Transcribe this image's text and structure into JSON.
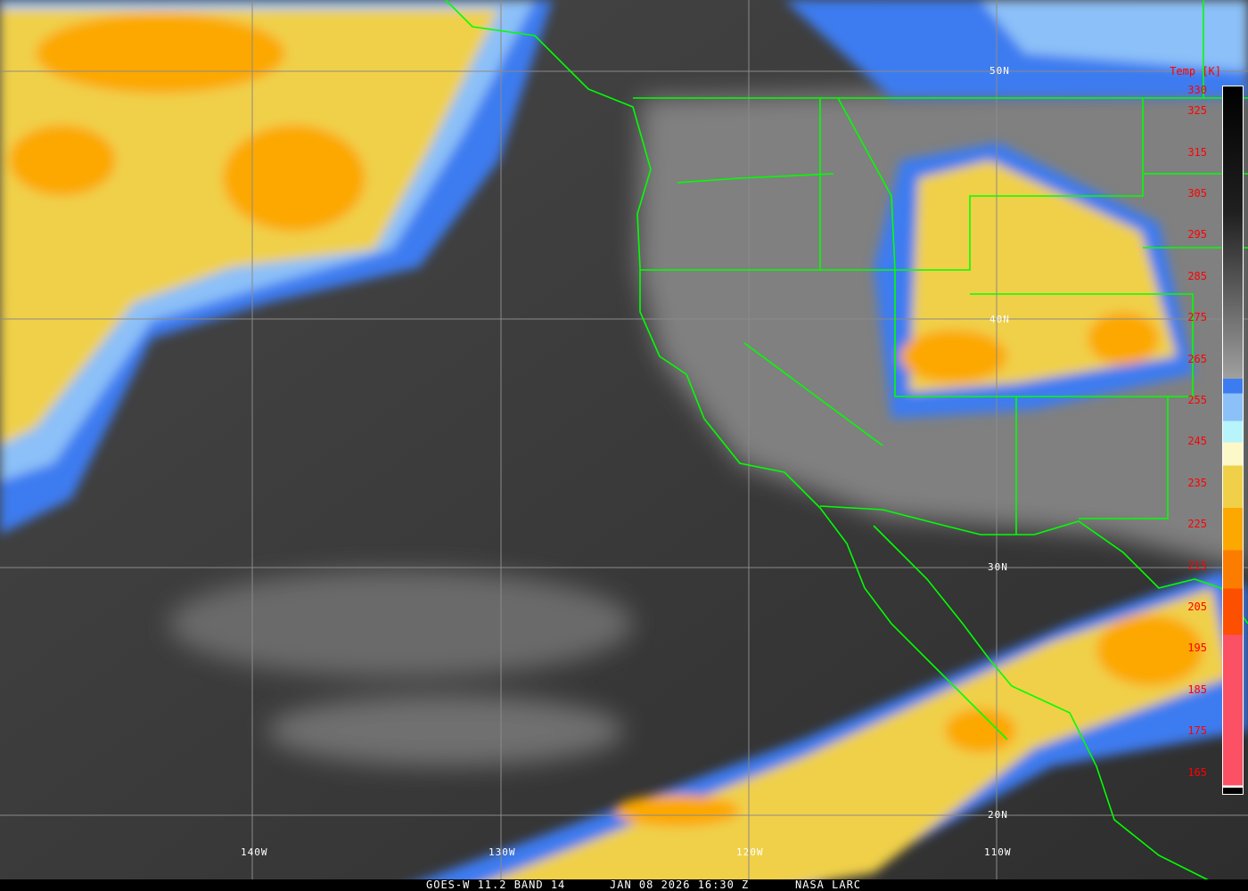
{
  "title": "GOES-W 11.2 BAND 14",
  "datetime": "JAN 08 2026 16:30 Z",
  "credit": "NASA LARC",
  "colorbar": {
    "title": "Temp [K]",
    "ticks": [
      "330",
      "325",
      "315",
      "305",
      "295",
      "285",
      "275",
      "265",
      "255",
      "245",
      "235",
      "225",
      "215",
      "205",
      "195",
      "185",
      "175",
      "165"
    ],
    "colors": {
      "blue": "#3d7cf0",
      "light_blue": "#8cc0f8",
      "cyan": "#b8f4fc",
      "pale_yellow": "#fcf8c8",
      "yellow": "#f0d048",
      "orange": "#fca800",
      "dark_orange": "#fc7c00",
      "red_orange": "#fc5000",
      "pink": "#fc5064"
    }
  },
  "grid": {
    "latitudes": [
      "50N",
      "40N",
      "30N",
      "20N"
    ],
    "longitudes": [
      "140W",
      "130W",
      "120W",
      "110W"
    ]
  },
  "border_color": "#00ff00"
}
